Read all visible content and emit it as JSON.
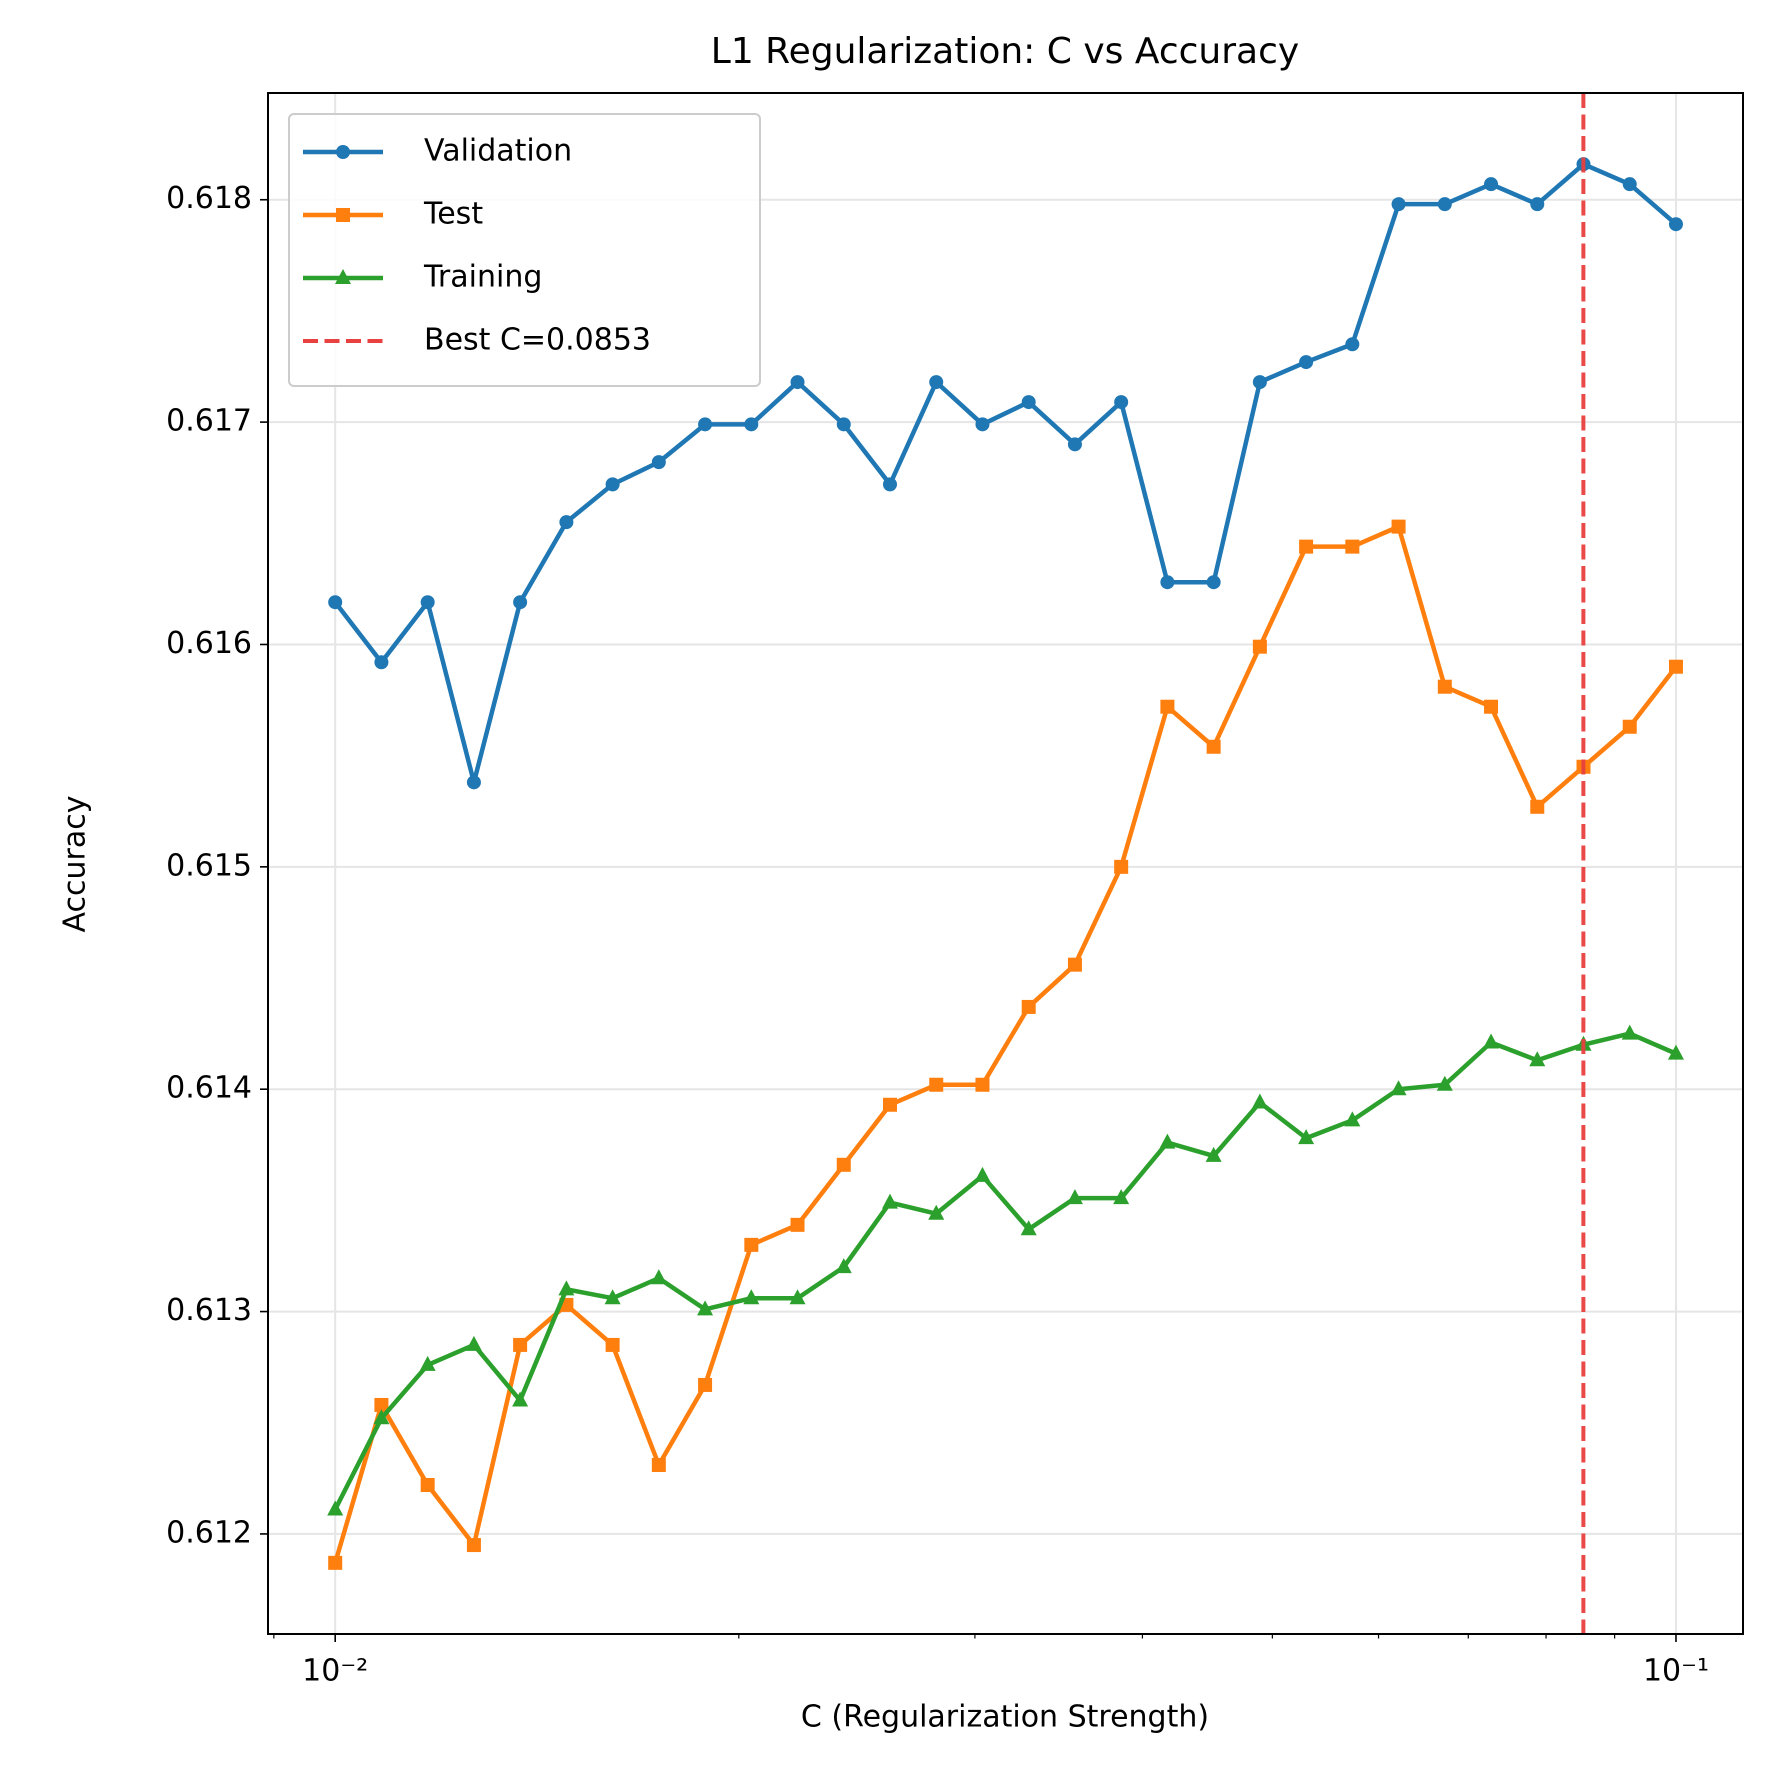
{
  "chart_data": {
    "type": "line",
    "title": "L1 Regularization: C vs Accuracy",
    "xlabel": "C (Regularization Strength)",
    "ylabel": "Accuracy",
    "xscale": "log",
    "x": [
      0.01,
      0.010826,
      0.011721,
      0.01269,
      0.013738,
      0.014874,
      0.016103,
      0.017433,
      0.018874,
      0.020434,
      0.022122,
      0.02395,
      0.025929,
      0.028072,
      0.030392,
      0.032903,
      0.035622,
      0.038566,
      0.041753,
      0.045204,
      0.048939,
      0.052983,
      0.057362,
      0.062102,
      0.067234,
      0.07279,
      0.078805,
      0.085317,
      0.092367,
      0.1
    ],
    "series": [
      {
        "name": "Validation",
        "color": "#1f77b4",
        "marker": "circle",
        "values": [
          0.61619,
          0.61592,
          0.61619,
          0.61538,
          0.61619,
          0.61655,
          0.61672,
          0.61682,
          0.61699,
          0.61699,
          0.61718,
          0.61699,
          0.61672,
          0.61718,
          0.61699,
          0.61709,
          0.6169,
          0.61709,
          0.61628,
          0.61628,
          0.61718,
          0.61727,
          0.61735,
          0.61798,
          0.61798,
          0.61807,
          0.61798,
          0.61816,
          0.61807,
          0.61789
        ]
      },
      {
        "name": "Test",
        "color": "#ff7f0e",
        "marker": "square",
        "values": [
          0.61187,
          0.61258,
          0.61222,
          0.61195,
          0.61285,
          0.61303,
          0.61285,
          0.61231,
          0.61267,
          0.6133,
          0.61339,
          0.61366,
          0.61393,
          0.61402,
          0.61402,
          0.61437,
          0.61456,
          0.615,
          0.61572,
          0.61554,
          0.61599,
          0.61644,
          0.61644,
          0.61653,
          0.61581,
          0.61572,
          0.61527,
          0.61545,
          0.61563,
          0.6159
        ]
      },
      {
        "name": "Training",
        "color": "#2ca02c",
        "marker": "triangle",
        "values": [
          0.61211,
          0.61252,
          0.61276,
          0.61285,
          0.6126,
          0.6131,
          0.61306,
          0.61315,
          0.61301,
          0.61306,
          0.61306,
          0.6132,
          0.61349,
          0.61344,
          0.61361,
          0.61337,
          0.61351,
          0.61351,
          0.61376,
          0.6137,
          0.61394,
          0.61378,
          0.61386,
          0.614,
          0.61402,
          0.61421,
          0.61413,
          0.6142,
          0.61425,
          0.61416
        ]
      }
    ],
    "vline": {
      "x": 0.0853,
      "label": "Best C=0.0853",
      "color": "#e8413f"
    },
    "xlim": [
      0.00891,
      0.1122
    ],
    "ylim": [
      0.61155,
      0.61848
    ],
    "xticks": [
      {
        "value": 0.01,
        "label": "10⁻²"
      },
      {
        "value": 0.1,
        "label": "10⁻¹"
      }
    ],
    "xminor_ticks": [
      0.009,
      0.02,
      0.03,
      0.04,
      0.05,
      0.06,
      0.07,
      0.08,
      0.09
    ],
    "yticks": [
      0.612,
      0.613,
      0.614,
      0.615,
      0.616,
      0.617,
      0.618
    ],
    "grid": true,
    "legend": "upper left"
  }
}
